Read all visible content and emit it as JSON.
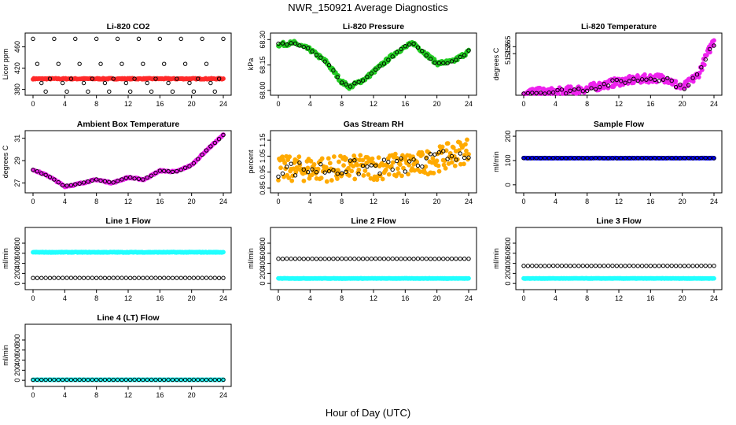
{
  "page_title": "NWR_150921  Average Diagnostics",
  "x_axis_label": "Hour of Day (UTC)",
  "colors": {
    "red": "#ff2a2a",
    "green": "#22cc22",
    "magenta": "#ee22ee",
    "cyan": "#22ffff",
    "orange": "#ffaa00",
    "blue": "#0000ff",
    "black": "#000000"
  },
  "chart_data": [
    {
      "type": "scatter",
      "title": "Li-820 CO2",
      "ylabel": "Licor ppm",
      "xlim": [
        0,
        24
      ],
      "ylim": [
        375,
        480
      ],
      "yticks": [
        "380",
        "420",
        "460"
      ],
      "ytick_values": [
        380,
        420,
        460
      ],
      "xticks": [
        "0",
        "4",
        "8",
        "12",
        "16",
        "20",
        "24"
      ],
      "xtick_values": [
        0,
        4,
        8,
        12,
        16,
        20,
        24
      ],
      "series": [
        {
          "name": "fill",
          "color": "red",
          "kind": "flat",
          "level": 400,
          "noise": 1
        },
        {
          "name": "black_markers",
          "color": "black",
          "kind": "levels",
          "levels": [
            475,
            428,
            392,
            376,
            400
          ]
        }
      ]
    },
    {
      "type": "scatter",
      "title": "Li-820 Pressure",
      "ylabel": "kPa",
      "xlim": [
        0,
        24
      ],
      "ylim": [
        67.99,
        68.32
      ],
      "yticks": [
        "68.00",
        "68.15",
        "68.30"
      ],
      "ytick_values": [
        68.0,
        68.15,
        68.3
      ],
      "xticks": [
        "0",
        "4",
        "8",
        "12",
        "16",
        "20",
        "24"
      ],
      "xtick_values": [
        0,
        4,
        8,
        12,
        16,
        20,
        24
      ],
      "series": [
        {
          "name": "fill",
          "color": "green",
          "kind": "curve",
          "points": [
            [
              0,
              68.27
            ],
            [
              2,
              68.28
            ],
            [
              4,
              68.24
            ],
            [
              6,
              68.17
            ],
            [
              8,
              68.05
            ],
            [
              9,
              68.02
            ],
            [
              11,
              68.07
            ],
            [
              13,
              68.15
            ],
            [
              15,
              68.23
            ],
            [
              17,
              68.28
            ],
            [
              19,
              68.2
            ],
            [
              20,
              68.16
            ],
            [
              22,
              68.17
            ],
            [
              24,
              68.23
            ]
          ],
          "noise": 0.012
        },
        {
          "name": "black_markers",
          "color": "black",
          "kind": "curve",
          "points": [
            [
              0,
              68.27
            ],
            [
              2,
              68.28
            ],
            [
              4,
              68.24
            ],
            [
              6,
              68.17
            ],
            [
              8,
              68.05
            ],
            [
              9,
              68.02
            ],
            [
              11,
              68.07
            ],
            [
              13,
              68.15
            ],
            [
              15,
              68.23
            ],
            [
              17,
              68.28
            ],
            [
              19,
              68.2
            ],
            [
              20,
              68.16
            ],
            [
              22,
              68.17
            ],
            [
              24,
              68.23
            ]
          ],
          "noise": 0.008
        }
      ]
    },
    {
      "type": "scatter",
      "title": "Li-820 Temperature",
      "ylabel": "degrees C",
      "xlim": [
        0,
        24
      ],
      "ylim": [
        51.2,
        51.28
      ],
      "yticks": [
        "51.255",
        "51.265"
      ],
      "ytick_values": [
        51.255,
        51.265
      ],
      "xticks": [
        "0",
        "4",
        "8",
        "12",
        "16",
        "20",
        "24"
      ],
      "xtick_values": [
        0,
        4,
        8,
        12,
        16,
        20,
        24
      ],
      "series": [
        {
          "name": "fill",
          "color": "magenta",
          "kind": "curve",
          "points": [
            [
              0,
              51.2
            ],
            [
              4,
              51.2
            ],
            [
              8,
              51.205
            ],
            [
              12,
              51.215
            ],
            [
              16,
              51.22
            ],
            [
              18,
              51.22
            ],
            [
              20,
              51.205
            ],
            [
              22,
              51.225
            ],
            [
              24,
              51.275
            ]
          ],
          "noise": 0.006
        },
        {
          "name": "black_markers",
          "color": "black",
          "kind": "curve",
          "points": [
            [
              0,
              51.2
            ],
            [
              4,
              51.2
            ],
            [
              8,
              51.205
            ],
            [
              12,
              51.215
            ],
            [
              16,
              51.22
            ],
            [
              18,
              51.22
            ],
            [
              20,
              51.205
            ],
            [
              22,
              51.225
            ],
            [
              24,
              51.27
            ]
          ],
          "noise": 0.004
        }
      ]
    },
    {
      "type": "scatter",
      "title": "Ambient Box Temperature",
      "ylabel": "degrees C",
      "xlim": [
        0,
        24
      ],
      "ylim": [
        26.4,
        31.4
      ],
      "yticks": [
        "27",
        "29",
        "31"
      ],
      "ytick_values": [
        27,
        29,
        31
      ],
      "xticks": [
        "0",
        "4",
        "8",
        "12",
        "16",
        "20",
        "24"
      ],
      "xtick_values": [
        0,
        4,
        8,
        12,
        16,
        20,
        24
      ],
      "series": [
        {
          "name": "fill",
          "color": "magenta",
          "kind": "curve",
          "points": [
            [
              0,
              28.2
            ],
            [
              2,
              27.6
            ],
            [
              4,
              26.7
            ],
            [
              5,
              26.8
            ],
            [
              8,
              27.3
            ],
            [
              10,
              27.0
            ],
            [
              12,
              27.5
            ],
            [
              14,
              27.3
            ],
            [
              16,
              28.1
            ],
            [
              18,
              28.0
            ],
            [
              20,
              28.6
            ],
            [
              22,
              30.0
            ],
            [
              24,
              31.3
            ]
          ],
          "noise": 0.06
        },
        {
          "name": "black_markers",
          "color": "black",
          "kind": "curve",
          "points": [
            [
              0,
              28.2
            ],
            [
              2,
              27.6
            ],
            [
              4,
              26.7
            ],
            [
              5,
              26.8
            ],
            [
              8,
              27.3
            ],
            [
              10,
              27.0
            ],
            [
              12,
              27.5
            ],
            [
              14,
              27.3
            ],
            [
              16,
              28.1
            ],
            [
              18,
              28.0
            ],
            [
              20,
              28.6
            ],
            [
              22,
              30.0
            ],
            [
              24,
              31.3
            ]
          ],
          "noise": 0.03
        }
      ]
    },
    {
      "type": "scatter",
      "title": "Gas Stream RH",
      "ylabel": "percent",
      "xlim": [
        0,
        24
      ],
      "ylim": [
        0.84,
        1.19
      ],
      "yticks": [
        "0.85",
        "0.95",
        "1.05",
        "1.15"
      ],
      "ytick_values": [
        0.85,
        0.95,
        1.05,
        1.15
      ],
      "xticks": [
        "0",
        "4",
        "8",
        "12",
        "16",
        "20",
        "24"
      ],
      "xtick_values": [
        0,
        4,
        8,
        12,
        16,
        20,
        24
      ],
      "series": [
        {
          "name": "fill",
          "color": "orange",
          "kind": "curve",
          "points": [
            [
              0,
              0.97
            ],
            [
              6,
              0.97
            ],
            [
              12,
              0.98
            ],
            [
              18,
              1.0
            ],
            [
              24,
              1.09
            ]
          ],
          "noise": 0.08
        },
        {
          "name": "black_markers",
          "color": "black",
          "kind": "curve",
          "points": [
            [
              0,
              0.97
            ],
            [
              6,
              0.97
            ],
            [
              12,
              0.98
            ],
            [
              18,
              1.0
            ],
            [
              24,
              1.09
            ]
          ],
          "noise": 0.05
        }
      ]
    },
    {
      "type": "scatter",
      "title": "Sample Flow",
      "ylabel": "ml/min",
      "xlim": [
        0,
        24
      ],
      "ylim": [
        -20,
        210
      ],
      "yticks": [
        "0",
        "100",
        "200"
      ],
      "ytick_values": [
        0,
        100,
        200
      ],
      "xticks": [
        "0",
        "4",
        "8",
        "12",
        "16",
        "20",
        "24"
      ],
      "xtick_values": [
        0,
        4,
        8,
        12,
        16,
        20,
        24
      ],
      "series": [
        {
          "name": "fill",
          "color": "blue",
          "kind": "flat",
          "level": 110,
          "noise": 0.5
        },
        {
          "name": "black_markers",
          "color": "black",
          "kind": "flat",
          "level": 110,
          "noise": 0.5
        }
      ]
    },
    {
      "type": "scatter",
      "title": "Line 1 Flow",
      "ylabel": "ml/min",
      "xlim": [
        0,
        24
      ],
      "ylim": [
        -60,
        1050
      ],
      "yticks": [
        "0",
        "200",
        "400",
        "600",
        "800"
      ],
      "ytick_values": [
        0,
        200,
        400,
        600,
        800
      ],
      "xticks": [
        "0",
        "4",
        "8",
        "12",
        "16",
        "20",
        "24"
      ],
      "xtick_values": [
        0,
        4,
        8,
        12,
        16,
        20,
        24
      ],
      "series": [
        {
          "name": "fill",
          "color": "cyan",
          "kind": "flat",
          "level": 620,
          "noise": 6
        },
        {
          "name": "black_markers",
          "color": "black",
          "kind": "flat",
          "level": 110,
          "noise": 1
        }
      ]
    },
    {
      "type": "scatter",
      "title": "Line 2 Flow",
      "ylabel": "ml/min",
      "xlim": [
        0,
        24
      ],
      "ylim": [
        -60,
        1050
      ],
      "yticks": [
        "0",
        "200",
        "400",
        "600",
        "800"
      ],
      "ytick_values": [
        0,
        200,
        400,
        600,
        800
      ],
      "xticks": [
        "0",
        "4",
        "8",
        "12",
        "16",
        "20",
        "24"
      ],
      "xtick_values": [
        0,
        4,
        8,
        12,
        16,
        20,
        24
      ],
      "series": [
        {
          "name": "fill",
          "color": "cyan",
          "kind": "flat",
          "level": 100,
          "noise": 3
        },
        {
          "name": "black_markers",
          "color": "black",
          "kind": "flat",
          "level": 490,
          "noise": 2
        }
      ]
    },
    {
      "type": "scatter",
      "title": "Line 3 Flow",
      "ylabel": "ml/min",
      "xlim": [
        0,
        24
      ],
      "ylim": [
        -60,
        1050
      ],
      "yticks": [
        "0",
        "200",
        "400",
        "600",
        "800"
      ],
      "ytick_values": [
        0,
        200,
        400,
        600,
        800
      ],
      "xticks": [
        "0",
        "4",
        "8",
        "12",
        "16",
        "20",
        "24"
      ],
      "xtick_values": [
        0,
        4,
        8,
        12,
        16,
        20,
        24
      ],
      "series": [
        {
          "name": "fill",
          "color": "cyan",
          "kind": "flat",
          "level": 100,
          "noise": 3
        },
        {
          "name": "black_markers",
          "color": "black",
          "kind": "flat",
          "level": 350,
          "noise": 2
        }
      ]
    },
    {
      "type": "scatter",
      "title": "Line 4 (LT) Flow",
      "ylabel": "ml/min",
      "xlim": [
        0,
        24
      ],
      "ylim": [
        -60,
        1050
      ],
      "yticks": [
        "0",
        "200",
        "400",
        "600",
        "800"
      ],
      "ytick_values": [
        0,
        200,
        400,
        600,
        800
      ],
      "xticks": [
        "0",
        "4",
        "8",
        "12",
        "16",
        "20",
        "24"
      ],
      "xtick_values": [
        0,
        4,
        8,
        12,
        16,
        20,
        24
      ],
      "series": [
        {
          "name": "fill",
          "color": "cyan",
          "kind": "flat",
          "level": 10,
          "noise": 1
        },
        {
          "name": "black_markers",
          "color": "black",
          "kind": "flat",
          "level": 10,
          "noise": 1
        }
      ]
    }
  ]
}
